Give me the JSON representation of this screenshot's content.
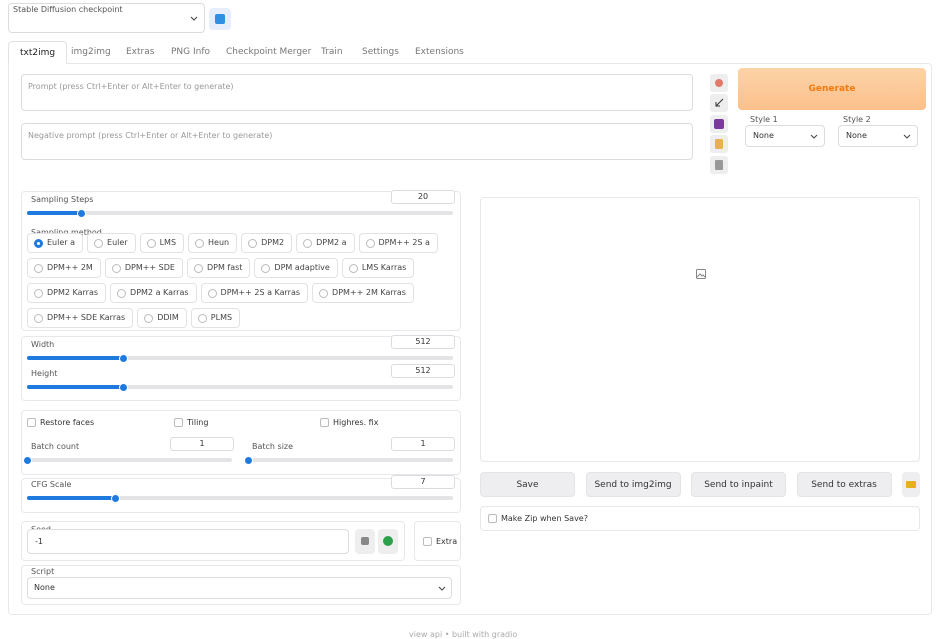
{
  "checkpoint": {
    "label": "Stable Diffusion checkpoint"
  },
  "tabs": [
    "txt2img",
    "img2img",
    "Extras",
    "PNG Info",
    "Checkpoint Merger",
    "Train",
    "Settings",
    "Extensions"
  ],
  "prompt": {
    "placeholder": "Prompt (press Ctrl+Enter or Alt+Enter to generate)"
  },
  "negative_prompt": {
    "placeholder": "Negative prompt (press Ctrl+Enter or Alt+Enter to generate)"
  },
  "generate": "Generate",
  "styles": [
    {
      "label": "Style 1",
      "value": "None"
    },
    {
      "label": "Style 2",
      "value": "None"
    }
  ],
  "sampling_steps": {
    "label": "Sampling Steps",
    "value": 20,
    "range": [
      1,
      150
    ]
  },
  "sampling_method": {
    "label": "Sampling method",
    "selected_index": 0,
    "options": [
      "Euler a",
      "Euler",
      "LMS",
      "Heun",
      "DPM2",
      "DPM2 a",
      "DPM++ 2S a",
      "DPM++ 2M",
      "DPM++ SDE",
      "DPM fast",
      "DPM adaptive",
      "LMS Karras",
      "DPM2 Karras",
      "DPM2 a Karras",
      "DPM++ 2S a Karras",
      "DPM++ 2M Karras",
      "DPM++ SDE Karras",
      "DDIM",
      "PLMS"
    ]
  },
  "width": {
    "label": "Width",
    "value": 512,
    "range": [
      64,
      2048
    ]
  },
  "height": {
    "label": "Height",
    "value": 512,
    "range": [
      64,
      2048
    ]
  },
  "checkboxes": [
    "Restore faces",
    "Tiling",
    "Highres. fix"
  ],
  "batch_count": {
    "label": "Batch count",
    "value": 1,
    "range": [
      1,
      100
    ]
  },
  "batch_size": {
    "label": "Batch size",
    "value": 1,
    "range": [
      1,
      8
    ]
  },
  "cfg_scale": {
    "label": "CFG Scale",
    "value": 7,
    "range": [
      1,
      30
    ]
  },
  "seed": {
    "label": "Seed",
    "value": -1
  },
  "extra": "Extra",
  "script": {
    "label": "Script",
    "value": "None"
  },
  "actions": [
    "Save",
    "Send to img2img",
    "Send to inpaint",
    "Send to extras"
  ],
  "make_zip": "Make Zip when Save?",
  "footer": "view api • built with gradio"
}
